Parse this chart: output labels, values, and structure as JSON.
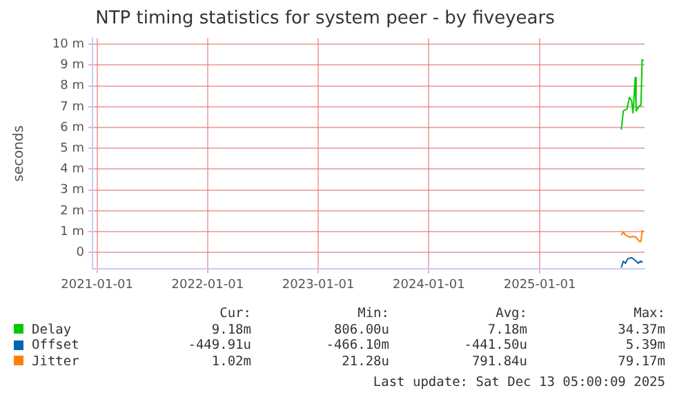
{
  "chart_data": {
    "type": "line",
    "title": "NTP timing statistics for system peer - by fiveyears",
    "ylabel": "seconds",
    "xlim": [
      "2020-12-17",
      "2025-12-13"
    ],
    "xticks": [
      "2021-01-01",
      "2022-01-01",
      "2023-01-01",
      "2024-01-01",
      "2025-01-01"
    ],
    "ylim": [
      -0.8,
      10.3
    ],
    "yticks": [
      {
        "value": 0,
        "label": "0"
      },
      {
        "value": 1,
        "label": "1 m"
      },
      {
        "value": 2,
        "label": "2 m"
      },
      {
        "value": 3,
        "label": "3 m"
      },
      {
        "value": 4,
        "label": "4 m"
      },
      {
        "value": 5,
        "label": "5 m"
      },
      {
        "value": 6,
        "label": "6 m"
      },
      {
        "value": 7,
        "label": "7 m"
      },
      {
        "value": 8,
        "label": "8 m"
      },
      {
        "value": 9,
        "label": "9 m"
      },
      {
        "value": 10,
        "label": "10 m"
      }
    ],
    "grid": true,
    "legend": "bottom",
    "marker": "none",
    "line_style": "solid",
    "series": [
      {
        "name": "Delay",
        "color": "#00cc00",
        "x": [
          "2025-09-27",
          "2025-10-04",
          "2025-10-16",
          "2025-10-24",
          "2025-10-31",
          "2025-11-05",
          "2025-11-12",
          "2025-11-15",
          "2025-11-26",
          "2025-12-01",
          "2025-12-05",
          "2025-12-09"
        ],
        "values": [
          5.9,
          6.8,
          6.9,
          7.45,
          7.3,
          6.7,
          8.4,
          6.8,
          7.05,
          7.05,
          9.27,
          9.2
        ]
      },
      {
        "name": "Offset",
        "color": "#0066b3",
        "x": [
          "2025-09-27",
          "2025-10-04",
          "2025-10-11",
          "2025-10-18",
          "2025-10-31",
          "2025-11-12",
          "2025-11-22",
          "2025-11-29",
          "2025-12-07"
        ],
        "values": [
          -0.73,
          -0.42,
          -0.52,
          -0.31,
          -0.25,
          -0.38,
          -0.52,
          -0.42,
          -0.46
        ]
      },
      {
        "name": "Jitter",
        "color": "#ff8000",
        "x": [
          "2025-09-27",
          "2025-10-04",
          "2025-10-11",
          "2025-10-24",
          "2025-11-05",
          "2025-11-15",
          "2025-11-26",
          "2025-12-01",
          "2025-12-05",
          "2025-12-09"
        ],
        "values": [
          0.83,
          0.98,
          0.83,
          0.73,
          0.77,
          0.73,
          0.52,
          0.52,
          1.04,
          1.0
        ]
      }
    ],
    "annotations": [
      "Cur:",
      "Min:",
      "Avg:",
      "Max:",
      "9.18m",
      "806.00u",
      "7.18m",
      "34.37m",
      "-449.91u",
      "-466.10m",
      "-441.50u",
      "5.39m",
      "1.02m",
      "21.28u",
      "791.84u",
      "79.17m",
      "Last update: Sat Dec 13 05:00:09 2025"
    ]
  }
}
